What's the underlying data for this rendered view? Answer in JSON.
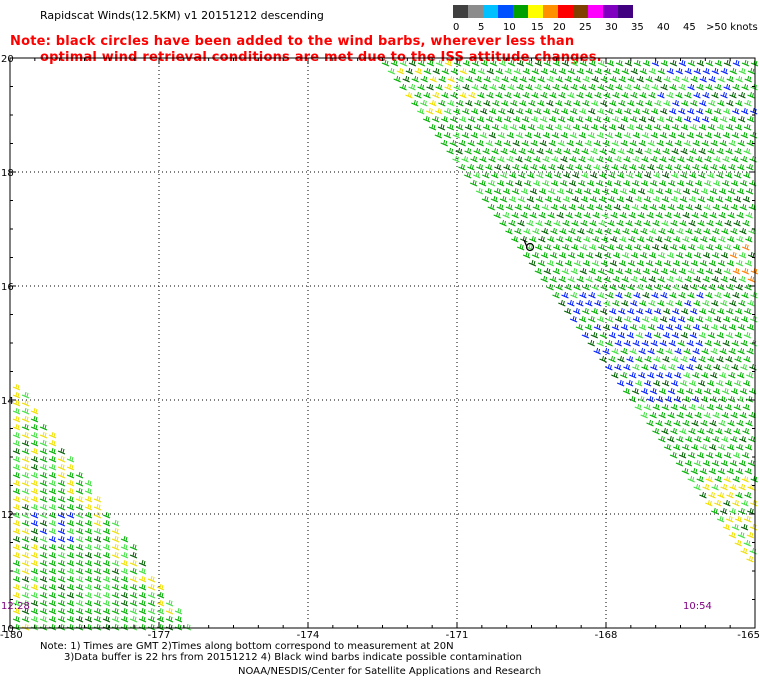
{
  "title": "Rapidscat Winds(12.5KM) v1 20151212 descending",
  "note_lines": [
    "Note: black circles have been added to the wind barbs, wherever less than",
    "optimal wind retrieval conditions are met due to the ISS attitude changes."
  ],
  "legend": {
    "labels": [
      "0",
      "5",
      "10",
      "15",
      "20",
      "25",
      "30",
      "35",
      "40",
      "45",
      ">50 knots"
    ],
    "colors": [
      "#404040",
      "#8c8c8c",
      "#00c0ff",
      "#0050ff",
      "#00a000",
      "#ffff00",
      "#ff9000",
      "#ff0000",
      "#804000",
      "#ff00ff",
      "#8000c0",
      "#400080"
    ]
  },
  "axes": {
    "lat_labels": [
      "20",
      "18",
      "16",
      "14",
      "12",
      "10"
    ],
    "lon_labels": [
      "-180",
      "-177",
      "-174",
      "-171",
      "-168",
      "-165"
    ]
  },
  "times": {
    "left": "12:28",
    "right": "10:54"
  },
  "footer": {
    "line1": "Note: 1) Times are GMT 2)Times along bottom correspond to measurement at 20N",
    "line2": "3)Data buffer is 22 hrs from 20151212 4) Black wind barbs indicate possible contamination",
    "line3": "NOAA/NESDIS/Center for Satellite Applications and Research"
  },
  "barb_colors": {
    "green": "#00b000",
    "dark_green": "#006000",
    "light_green": "#40e040",
    "blue": "#0020ff",
    "yellow": "#f0e000",
    "orange": "#ff8000"
  }
}
